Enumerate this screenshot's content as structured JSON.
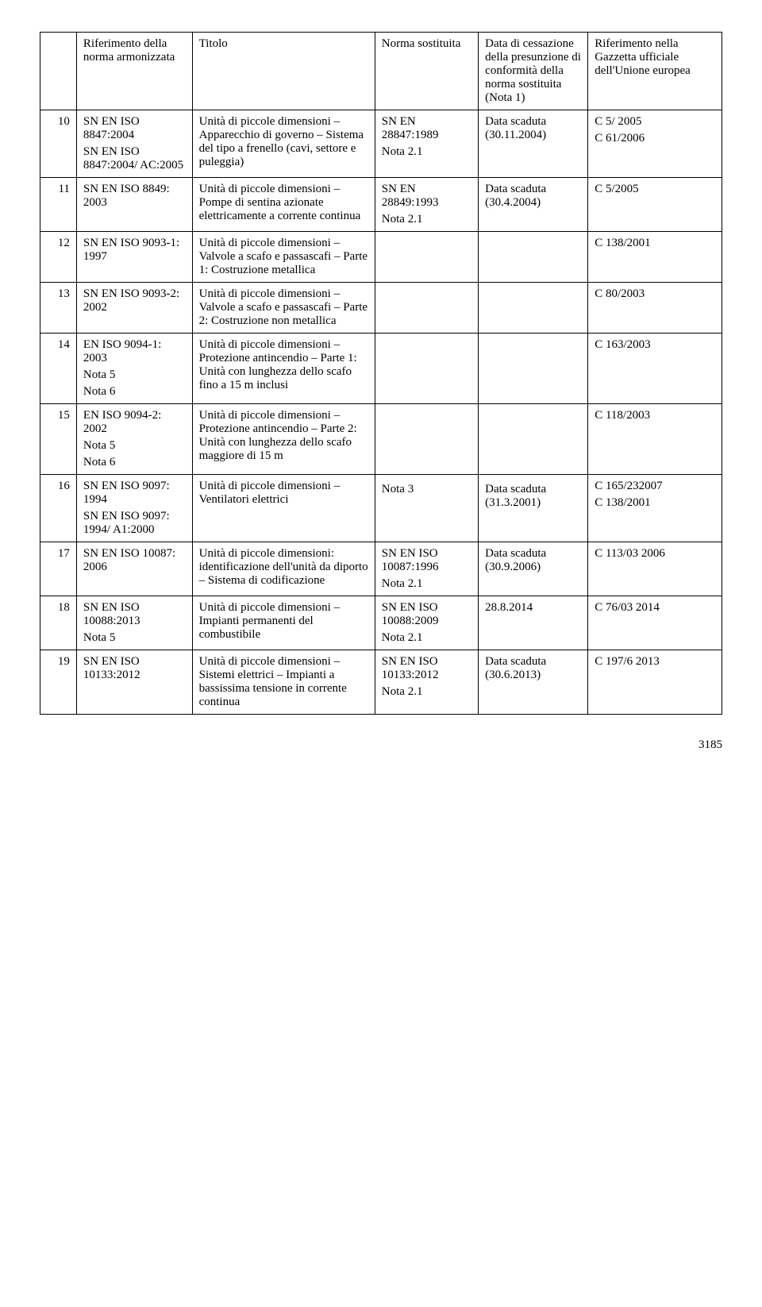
{
  "headers": {
    "ref": "Riferimento della norma armonizzata",
    "title": "Titolo",
    "norm": "Norma sostituita",
    "date": "Data di cessazione della presunzione di conformità della norma sostituita (Nota 1)",
    "gz": "Riferimento nella Gazzetta ufficiale dell'Unione europea"
  },
  "rows": [
    {
      "n": "10",
      "ref": "SN EN ISO 8847:2004\nSN EN ISO 8847:2004/ AC:2005",
      "title": "Unità di piccole dimensioni – Apparecchio di governo – Sistema del tipo a frenello (cavi, settore e puleggia)",
      "norm": "SN EN 28847:1989\nNota 2.1",
      "date": "Data scaduta (30.11.2004)",
      "gz": "C 5/ 2005\nC 61/2006"
    },
    {
      "n": "11",
      "ref": "SN EN ISO 8849: 2003",
      "title": "Unità di piccole dimensioni – Pompe di sentina azionate elettricamente a corrente continua",
      "norm": "SN EN 28849:1993\nNota 2.1",
      "date": "Data scaduta (30.4.2004)",
      "gz": "C 5/2005"
    },
    {
      "n": "12",
      "ref": "SN EN ISO 9093-1: 1997",
      "title": "Unità di piccole dimensioni – Valvole a scafo e passascafi – Parte 1: Costruzione metallica",
      "norm": "",
      "date": "",
      "gz": "C 138/2001"
    },
    {
      "n": "13",
      "ref": "SN EN ISO 9093-2: 2002",
      "title": "Unità di piccole dimensioni – Valvole a scafo e passascafi – Parte 2: Costruzione non metallica",
      "norm": "",
      "date": "",
      "gz": "C 80/2003"
    },
    {
      "n": "14",
      "ref": "EN ISO 9094-1: 2003\nNota 5\nNota 6",
      "title": "Unità di piccole dimensioni – Protezione antincendio – Parte 1: Unità con lunghezza dello scafo fino a 15 m inclusi",
      "norm": "",
      "date": "",
      "gz": "C 163/2003"
    },
    {
      "n": "15",
      "ref": "EN ISO 9094-2: 2002\nNota 5\nNota 6",
      "title": "Unità di piccole dimensioni – Protezione antincendio – Parte 2: Unità con lunghezza dello scafo maggiore di 15 m",
      "norm": "",
      "date": "",
      "gz": "C 118/2003"
    },
    {
      "n": "16",
      "ref": "SN EN ISO 9097: 1994\nSN EN ISO 9097: 1994/ A1:2000",
      "title": "Unità di piccole dimensioni – Ventilatori elettrici",
      "norm": "\nNota 3",
      "date": "\nData scaduta (31.3.2001)",
      "gz": "C 165/232007\nC 138/2001"
    },
    {
      "n": "17",
      "ref": "SN EN ISO 10087: 2006",
      "title": "Unità di piccole dimensioni: identificazione dell'unità da diporto – Sistema di codificazione",
      "norm": "SN EN ISO 10087:1996\nNota 2.1",
      "date": "Data scaduta (30.9.2006)",
      "gz": "C 113/03 2006"
    },
    {
      "n": "18",
      "ref": "SN EN ISO 10088:2013\nNota 5",
      "title": "Unità di piccole dimensioni – Impianti permanenti del combustibile",
      "norm": "SN EN ISO 10088:2009\nNota 2.1",
      "date": "28.8.2014",
      "gz": "C 76/03 2014"
    },
    {
      "n": "19",
      "ref": "SN EN ISO 10133:2012",
      "title": "Unità di piccole dimensioni – Sistemi elettrici – Impianti a bassissima tensione in corrente continua",
      "norm": "SN EN ISO 10133:2012\nNota 2.1",
      "date": "Data scaduta (30.6.2013)",
      "gz": "C 197/6 2013"
    }
  ],
  "pageNumber": "3185"
}
